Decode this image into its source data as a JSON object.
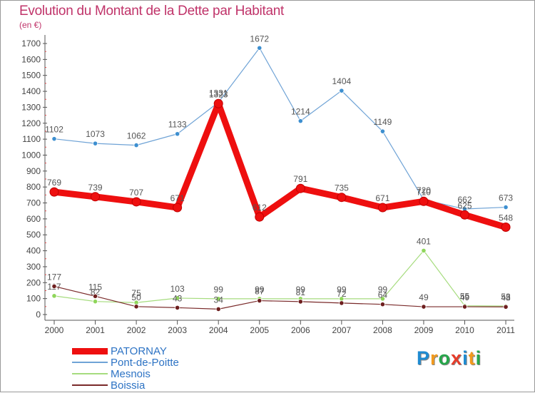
{
  "header": {
    "title": "Evolution du Montant de la Dette par Habitant",
    "subtitle": "(en €)"
  },
  "logo": {
    "text": "Proxiti",
    "letters": [
      {
        "ch": "P",
        "color": "#1f8bd1"
      },
      {
        "ch": "r",
        "color": "#f39a1c"
      },
      {
        "ch": "o",
        "color": "#26a64a"
      },
      {
        "ch": "x",
        "color": "#e63c2a"
      },
      {
        "ch": "i",
        "color": "#1f8bd1"
      },
      {
        "ch": "t",
        "color": "#f39a1c"
      },
      {
        "ch": "i",
        "color": "#26a64a"
      }
    ]
  },
  "chart_data": {
    "type": "line",
    "title": "Evolution du Montant de la Dette par Habitant",
    "ylabel": "(en €)",
    "xlabel": "",
    "ylim": [
      0,
      1700
    ],
    "yticks": [
      0,
      100,
      200,
      300,
      400,
      500,
      600,
      700,
      800,
      900,
      1000,
      1100,
      1200,
      1300,
      1400,
      1500,
      1600,
      1700
    ],
    "categories": [
      "2000",
      "2001",
      "2002",
      "2003",
      "2004",
      "2005",
      "2006",
      "2007",
      "2008",
      "2009",
      "2010",
      "2011"
    ],
    "grid": false,
    "legend_position": "bottom-left",
    "series": [
      {
        "name": "Pont-de-Poitte",
        "color": "#6fa3d6",
        "marker": "#3d8fd0",
        "width": 1.2,
        "values": [
          1102,
          1073,
          1062,
          1133,
          1331,
          1672,
          1214,
          1404,
          1149,
          720,
          662,
          673
        ]
      },
      {
        "name": "Mesnois",
        "color": "#a6dc7e",
        "marker": "#8fd65a",
        "width": 1.2,
        "values": [
          117,
          82,
          75,
          103,
          99,
          99,
          99,
          99,
          99,
          401,
          55,
          53
        ]
      },
      {
        "name": "Boissia",
        "color": "#7a2a2a",
        "marker": "#6e1f1f",
        "width": 1.2,
        "values": [
          177,
          115,
          50,
          43,
          34,
          87,
          81,
          72,
          64,
          49,
          49,
          48
        ]
      },
      {
        "name": "PATORNAY",
        "color": "#ee0f0f",
        "marker": "#ee0f0f",
        "width": 9,
        "values": [
          769,
          739,
          707,
          671,
          1323,
          612,
          791,
          735,
          671,
          710,
          625,
          548
        ]
      }
    ],
    "legend_order": [
      "PATORNAY",
      "Pont-de-Poitte",
      "Mesnois",
      "Boissia"
    ]
  }
}
